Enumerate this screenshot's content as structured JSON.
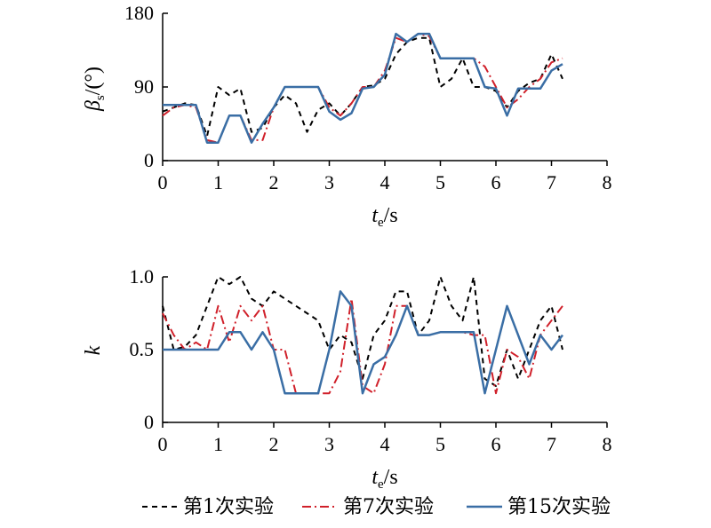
{
  "chart_data": [
    {
      "type": "line",
      "ylabel": "βs/(°)",
      "xlabel": "te/s",
      "xlim": [
        0,
        8
      ],
      "ylim": [
        0,
        180
      ],
      "xticks": [
        "0",
        "1",
        "2",
        "3",
        "4",
        "5",
        "6",
        "7",
        "8"
      ],
      "yticks": [
        "0",
        "90",
        "180"
      ],
      "grid": false,
      "series": [
        {
          "name": "第1次实验",
          "color": "#000000",
          "style": "dashed",
          "x": [
            0,
            0.2,
            0.4,
            0.6,
            0.8,
            1.0,
            1.2,
            1.4,
            1.6,
            1.8,
            2.0,
            2.2,
            2.4,
            2.6,
            2.8,
            3.0,
            3.2,
            3.4,
            3.6,
            3.8,
            4.0,
            4.2,
            4.4,
            4.6,
            4.8,
            5.0,
            5.2,
            5.4,
            5.6,
            5.8,
            6.0,
            6.2,
            6.4,
            6.6,
            6.8,
            7.0,
            7.2
          ],
          "y": [
            60,
            65,
            70,
            68,
            30,
            90,
            80,
            88,
            35,
            40,
            65,
            80,
            70,
            35,
            62,
            70,
            55,
            70,
            90,
            92,
            100,
            130,
            145,
            150,
            150,
            90,
            100,
            125,
            90,
            90,
            85,
            65,
            85,
            95,
            100,
            130,
            100
          ]
        },
        {
          "name": "第7次实验",
          "color": "#d0202a",
          "style": "dashdot",
          "x": [
            0,
            0.2,
            0.4,
            0.6,
            0.8,
            1.0,
            1.2,
            1.4,
            1.6,
            1.8,
            2.0,
            2.2,
            2.4,
            2.6,
            2.8,
            3.0,
            3.2,
            3.4,
            3.6,
            3.8,
            4.0,
            4.2,
            4.4,
            4.6,
            4.8,
            5.0,
            5.2,
            5.4,
            5.6,
            5.8,
            6.0,
            6.2,
            6.4,
            6.6,
            6.8,
            7.0,
            7.2
          ],
          "y": [
            55,
            65,
            68,
            65,
            25,
            22,
            55,
            55,
            25,
            25,
            65,
            90,
            90,
            90,
            90,
            65,
            55,
            70,
            90,
            90,
            110,
            150,
            145,
            155,
            152,
            125,
            125,
            125,
            125,
            115,
            90,
            65,
            75,
            90,
            100,
            120,
            125
          ]
        },
        {
          "name": "第15次实验",
          "color": "#3a6ea5",
          "style": "solid",
          "x": [
            0,
            0.2,
            0.4,
            0.6,
            0.8,
            1.0,
            1.2,
            1.4,
            1.6,
            1.8,
            2.0,
            2.2,
            2.4,
            2.6,
            2.8,
            3.0,
            3.2,
            3.4,
            3.6,
            3.8,
            4.0,
            4.2,
            4.4,
            4.6,
            4.8,
            5.0,
            5.2,
            5.4,
            5.6,
            5.8,
            6.0,
            6.2,
            6.4,
            6.6,
            6.8,
            7.0,
            7.2
          ],
          "y": [
            68,
            68,
            68,
            68,
            22,
            22,
            55,
            55,
            22,
            45,
            65,
            90,
            90,
            90,
            90,
            60,
            50,
            58,
            88,
            90,
            105,
            155,
            145,
            155,
            155,
            125,
            125,
            125,
            125,
            90,
            88,
            55,
            88,
            88,
            88,
            110,
            118
          ]
        }
      ]
    },
    {
      "type": "line",
      "ylabel": "k",
      "xlabel": "te/s",
      "xlim": [
        0,
        8
      ],
      "ylim": [
        0,
        1.0
      ],
      "xticks": [
        "0",
        "1",
        "2",
        "3",
        "4",
        "5",
        "6",
        "7",
        "8"
      ],
      "yticks": [
        "0",
        "0.5",
        "1.0"
      ],
      "grid": false,
      "series": [
        {
          "name": "第1次实验",
          "color": "#000000",
          "style": "dashed",
          "x": [
            0,
            0.2,
            0.4,
            0.6,
            0.8,
            1.0,
            1.2,
            1.4,
            1.6,
            1.8,
            2.0,
            2.2,
            2.4,
            2.6,
            2.8,
            3.0,
            3.2,
            3.4,
            3.6,
            3.8,
            4.0,
            4.2,
            4.4,
            4.6,
            4.8,
            5.0,
            5.2,
            5.4,
            5.6,
            5.8,
            6.0,
            6.2,
            6.4,
            6.6,
            6.8,
            7.0,
            7.2
          ],
          "y": [
            0.8,
            0.5,
            0.52,
            0.6,
            0.8,
            1.0,
            0.95,
            1.0,
            0.85,
            0.8,
            0.9,
            0.85,
            0.8,
            0.75,
            0.7,
            0.5,
            0.6,
            0.55,
            0.3,
            0.6,
            0.7,
            0.9,
            0.9,
            0.6,
            0.7,
            1.0,
            0.8,
            0.7,
            1.0,
            0.3,
            0.25,
            0.5,
            0.3,
            0.5,
            0.7,
            0.8,
            0.5
          ]
        },
        {
          "name": "第7次实验",
          "color": "#d0202a",
          "style": "dashdot",
          "x": [
            0,
            0.2,
            0.4,
            0.6,
            0.8,
            1.0,
            1.2,
            1.4,
            1.6,
            1.8,
            2.0,
            2.2,
            2.4,
            2.6,
            2.8,
            3.0,
            3.2,
            3.4,
            3.6,
            3.8,
            4.0,
            4.2,
            4.4,
            4.6,
            4.8,
            5.0,
            5.2,
            5.4,
            5.6,
            5.8,
            6.0,
            6.2,
            6.4,
            6.6,
            6.8,
            7.0,
            7.2
          ],
          "y": [
            0.75,
            0.6,
            0.5,
            0.55,
            0.5,
            0.8,
            0.55,
            0.8,
            0.7,
            0.8,
            0.5,
            0.5,
            0.2,
            0.2,
            0.2,
            0.2,
            0.35,
            0.85,
            0.25,
            0.2,
            0.4,
            0.8,
            0.8,
            0.6,
            0.6,
            0.62,
            0.62,
            0.62,
            0.6,
            0.6,
            0.2,
            0.5,
            0.45,
            0.3,
            0.6,
            0.7,
            0.8
          ]
        },
        {
          "name": "第15次实验",
          "color": "#3a6ea5",
          "style": "solid",
          "x": [
            0,
            0.2,
            0.4,
            0.6,
            0.8,
            1.0,
            1.2,
            1.4,
            1.6,
            1.8,
            2.0,
            2.2,
            2.4,
            2.6,
            2.8,
            3.0,
            3.2,
            3.4,
            3.6,
            3.8,
            4.0,
            4.2,
            4.4,
            4.6,
            4.8,
            5.0,
            5.2,
            5.4,
            5.6,
            5.8,
            6.0,
            6.2,
            6.4,
            6.6,
            6.8,
            7.0,
            7.2
          ],
          "y": [
            0.5,
            0.5,
            0.5,
            0.5,
            0.5,
            0.5,
            0.62,
            0.62,
            0.5,
            0.62,
            0.5,
            0.2,
            0.2,
            0.2,
            0.2,
            0.5,
            0.9,
            0.8,
            0.2,
            0.4,
            0.45,
            0.6,
            0.8,
            0.6,
            0.6,
            0.62,
            0.62,
            0.62,
            0.62,
            0.2,
            0.5,
            0.8,
            0.6,
            0.4,
            0.6,
            0.5,
            0.6
          ]
        }
      ]
    }
  ],
  "legend": {
    "placement": "bottom",
    "items": [
      {
        "label": "第1次实验",
        "color": "#000000",
        "style": "dashed"
      },
      {
        "label": "第7次实验",
        "color": "#d0202a",
        "style": "dashdot"
      },
      {
        "label": "第15次实验",
        "color": "#3a6ea5",
        "style": "solid"
      }
    ]
  }
}
